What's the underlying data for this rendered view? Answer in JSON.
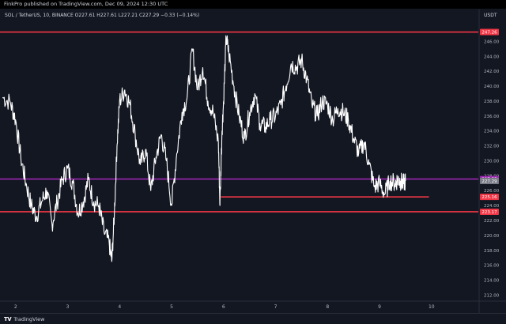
{
  "header": {
    "publish_line": "FinkPro published on TradingView.com, Dec 09, 2024 12:30 UTC",
    "symbol_line": "SOL / TetherUS, 10, BINANCE  O227.61  H227.61  L227.21  C227.29  −0.33 (−0.14%)",
    "currency": "USDT"
  },
  "footer": {
    "logo_mark": "TV",
    "logo_text": "TradingView"
  },
  "colors": {
    "background": "#131722",
    "candles": "#ffffff",
    "resistance": "#f23645",
    "current_price": "#9c27b0",
    "axis_text": "#b2b5be"
  },
  "chart_data": {
    "type": "line",
    "title": "",
    "xlabel": "",
    "ylabel": "",
    "x_ticks": [
      "2",
      "3",
      "4",
      "5",
      "6",
      "7",
      "8",
      "9",
      "10"
    ],
    "y_ticks": [
      212,
      214,
      216,
      218,
      220,
      222,
      224,
      226,
      228,
      230,
      232,
      234,
      236,
      238,
      240,
      242,
      244,
      246
    ],
    "xlim": [
      1.7,
      10.9
    ],
    "ylim": [
      211.3,
      248.8
    ],
    "grid": false,
    "price_series": {
      "x": [
        1.75,
        1.9,
        2.0,
        2.1,
        2.2,
        2.3,
        2.4,
        2.5,
        2.6,
        2.7,
        2.8,
        2.9,
        3.0,
        3.1,
        3.2,
        3.3,
        3.4,
        3.5,
        3.6,
        3.7,
        3.8,
        3.85,
        3.9,
        3.95,
        4.0,
        4.1,
        4.2,
        4.3,
        4.4,
        4.5,
        4.6,
        4.7,
        4.8,
        4.9,
        5.0,
        5.1,
        5.2,
        5.3,
        5.4,
        5.5,
        5.6,
        5.7,
        5.8,
        5.9,
        5.93,
        5.97,
        6.0,
        6.05,
        6.1,
        6.2,
        6.3,
        6.4,
        6.5,
        6.6,
        6.7,
        6.8,
        6.9,
        7.0,
        7.1,
        7.2,
        7.3,
        7.4,
        7.5,
        7.6,
        7.7,
        7.8,
        7.9,
        8.0,
        8.1,
        8.2,
        8.3,
        8.4,
        8.5,
        8.6,
        8.7,
        8.8,
        8.9,
        9.0,
        9.1,
        9.2,
        9.3,
        9.35,
        9.4,
        9.45,
        9.5
      ],
      "values": [
        238.5,
        237.8,
        235.5,
        230.5,
        227.0,
        224.0,
        222.5,
        224.5,
        226.0,
        221.5,
        224.5,
        227.5,
        229.0,
        227.0,
        223.0,
        224.5,
        227.5,
        224.5,
        224.0,
        220.5,
        219.0,
        216.5,
        223.0,
        232.0,
        238.0,
        239.5,
        237.5,
        233.5,
        229.5,
        231.5,
        226.0,
        230.5,
        233.5,
        230.0,
        224.0,
        231.0,
        236.5,
        238.5,
        245.0,
        239.5,
        242.5,
        238.0,
        236.5,
        232.5,
        224.0,
        234.0,
        238.0,
        246.5,
        244.5,
        240.0,
        236.0,
        233.0,
        236.5,
        239.0,
        235.0,
        234.5,
        235.5,
        236.0,
        237.5,
        240.0,
        243.0,
        242.5,
        243.5,
        241.0,
        237.5,
        236.0,
        238.0,
        237.5,
        235.5,
        237.0,
        236.5,
        235.5,
        233.0,
        231.0,
        232.5,
        229.5,
        226.5,
        227.0,
        225.5,
        227.3,
        227.0,
        227.5,
        227.3,
        226.9,
        227.29
      ]
    },
    "levels": [
      {
        "label": "247.26",
        "value": 247.26,
        "color": "#f23645",
        "kind": "line"
      },
      {
        "label": "227.55",
        "value": 227.55,
        "color": "#9c27b0",
        "kind": "line"
      },
      {
        "label": "225.16",
        "value": 225.16,
        "color": "#f23645",
        "kind": "segment",
        "x_start": 5.95,
        "x_end": 9.95
      },
      {
        "label": "223.17",
        "value": 223.17,
        "color": "#f23645",
        "kind": "line"
      }
    ],
    "price_badges": [
      {
        "label": "247.26",
        "value": 247.26,
        "color": "#f23645"
      },
      {
        "label": "227.55",
        "value": 227.55,
        "color": "#9c27b0"
      },
      {
        "label": "227.29",
        "value": 227.29,
        "color": "#787b86"
      },
      {
        "label": "225.16",
        "value": 225.16,
        "color": "#f23645"
      },
      {
        "label": "223.17",
        "value": 223.17,
        "color": "#f23645"
      }
    ]
  }
}
